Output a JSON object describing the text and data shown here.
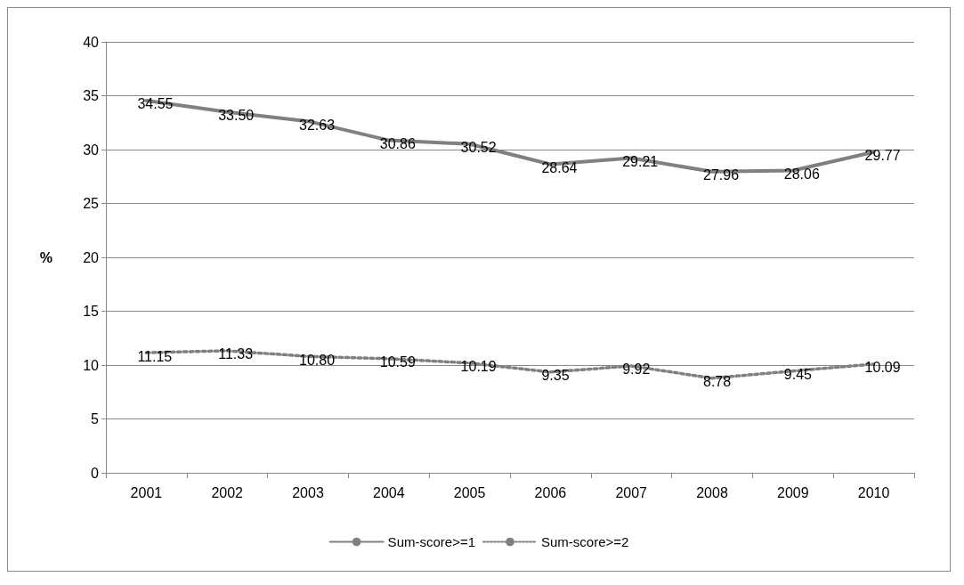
{
  "chart_data": {
    "type": "line",
    "ylabel": "%",
    "categories": [
      "2001",
      "2002",
      "2003",
      "2004",
      "2005",
      "2006",
      "2007",
      "2008",
      "2009",
      "2010"
    ],
    "series": [
      {
        "name": "Sum-score>=1",
        "color": "#808080",
        "line_style": "solid",
        "values": [
          34.55,
          33.5,
          32.63,
          30.86,
          30.52,
          28.64,
          29.21,
          27.96,
          28.06,
          29.77
        ],
        "value_labels": [
          "34.55",
          "33.50",
          "32.63",
          "30.86",
          "30.52",
          "28.64",
          "29.21",
          "27.96",
          "28.06",
          "29.77"
        ]
      },
      {
        "name": "Sum-score>=2",
        "color": "#808080",
        "line_style": "dotted",
        "values": [
          11.15,
          11.33,
          10.8,
          10.59,
          10.19,
          9.35,
          9.92,
          8.78,
          9.45,
          10.09
        ],
        "value_labels": [
          "11.15",
          "11.33",
          "10.80",
          "10.59",
          "10.19",
          "9.35",
          "9.92",
          "8.78",
          "9.45",
          "10.09"
        ]
      }
    ],
    "ylim": [
      0,
      40
    ],
    "yticks": [
      0,
      5,
      10,
      15,
      20,
      25,
      30,
      35,
      40
    ],
    "grid": "y",
    "legend": "bottom",
    "marker": "none"
  }
}
